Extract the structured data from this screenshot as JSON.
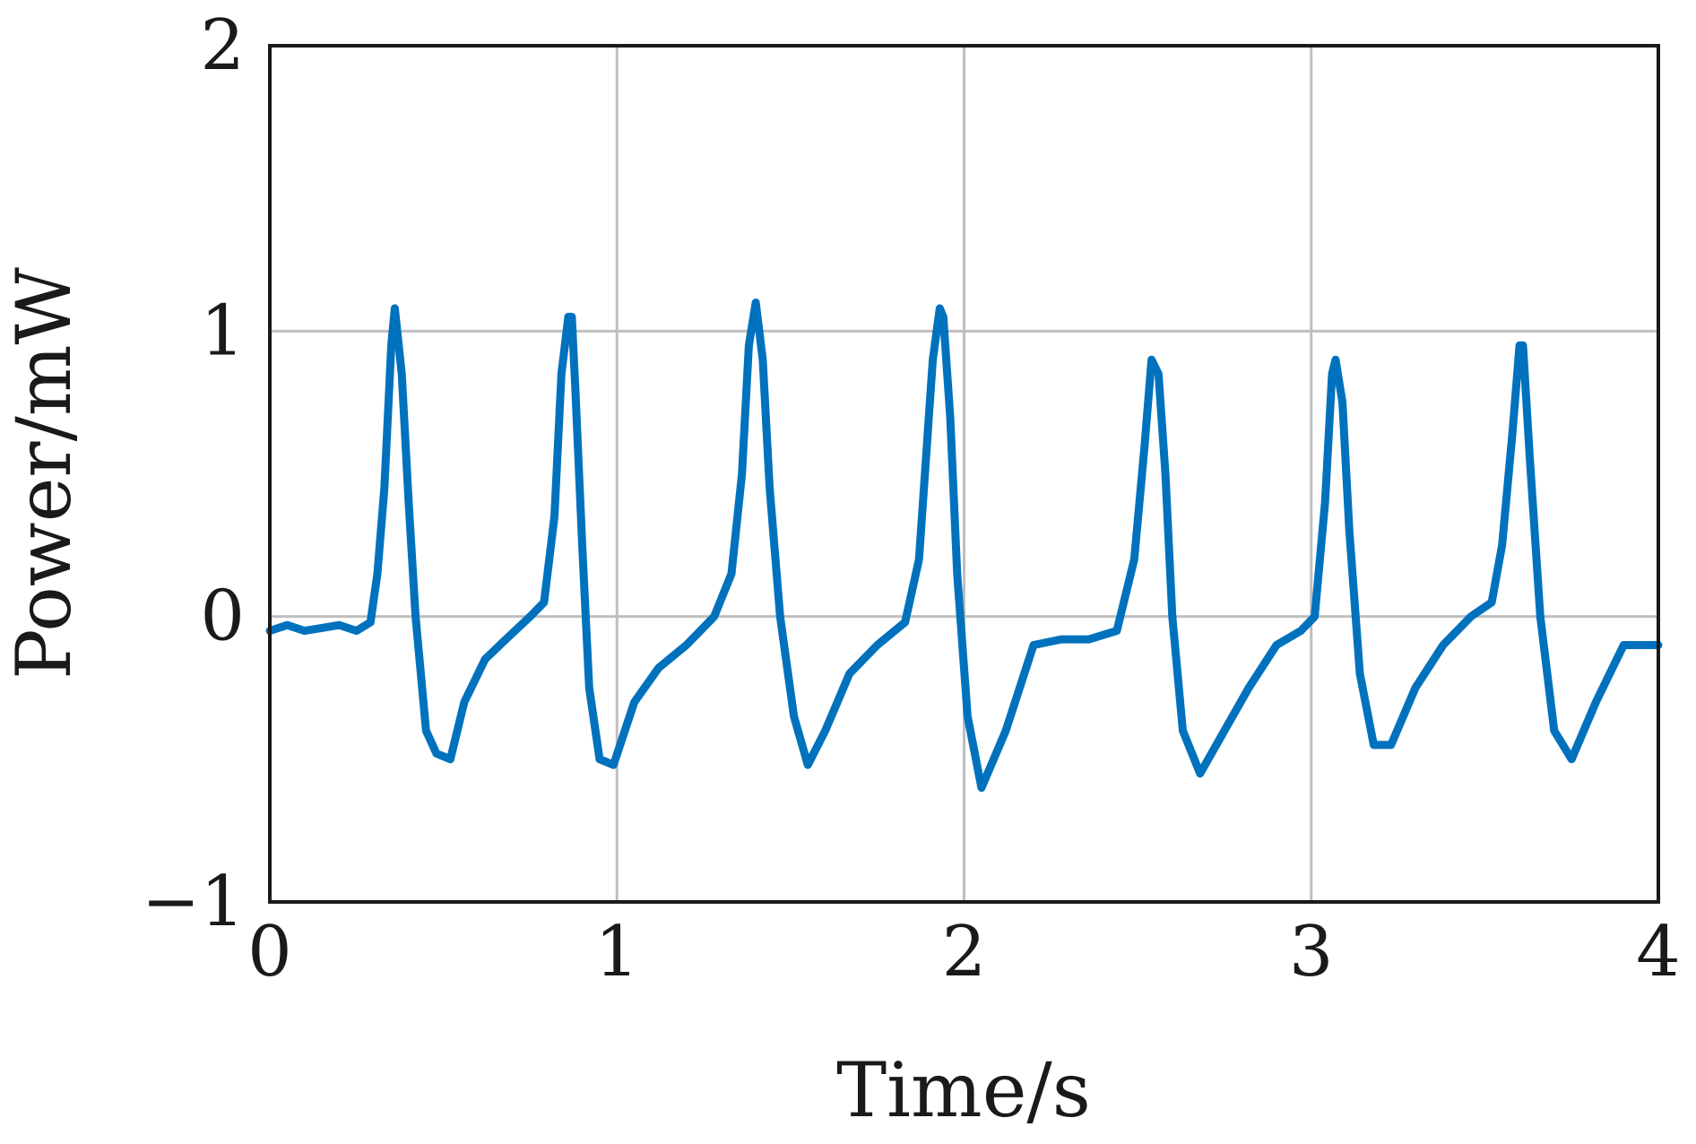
{
  "chart_data": {
    "type": "line",
    "title": "",
    "xlabel": "Time/s",
    "ylabel": "Power/mW",
    "xlim": [
      0,
      4
    ],
    "ylim": [
      -1,
      2
    ],
    "x_ticks": [
      0,
      1,
      2,
      3,
      4
    ],
    "y_ticks": [
      -1,
      0,
      1,
      2
    ],
    "x_tick_labels": [
      "0",
      "1",
      "2",
      "3",
      "4"
    ],
    "y_tick_labels": [
      "−1",
      "0",
      "1",
      "2"
    ],
    "grid": true,
    "legend": "none",
    "colors": {
      "series": "#0072BD",
      "grid": "#bfbfbf",
      "axes": "#1a1a1a"
    },
    "series": [
      {
        "x": [
          0.0,
          0.05,
          0.1,
          0.15,
          0.2,
          0.25,
          0.29,
          0.31,
          0.33,
          0.35,
          0.36,
          0.38,
          0.4,
          0.42,
          0.45,
          0.48,
          0.52,
          0.56,
          0.62,
          0.68,
          0.75,
          0.79,
          0.82,
          0.84,
          0.86,
          0.87,
          0.88,
          0.9,
          0.92,
          0.95,
          0.99,
          1.05,
          1.12,
          1.2,
          1.28,
          1.33,
          1.36,
          1.38,
          1.4,
          1.42,
          1.44,
          1.47,
          1.51,
          1.55,
          1.6,
          1.67,
          1.75,
          1.83,
          1.87,
          1.89,
          1.91,
          1.93,
          1.94,
          1.96,
          1.98,
          2.01,
          2.05,
          2.12,
          2.2,
          2.28,
          2.36,
          2.44,
          2.49,
          2.52,
          2.54,
          2.56,
          2.58,
          2.6,
          2.63,
          2.68,
          2.75,
          2.82,
          2.9,
          2.97,
          3.01,
          3.04,
          3.06,
          3.07,
          3.09,
          3.11,
          3.14,
          3.18,
          3.23,
          3.3,
          3.38,
          3.46,
          3.52,
          3.55,
          3.58,
          3.6,
          3.61,
          3.63,
          3.66,
          3.7,
          3.75,
          3.82,
          3.9,
          4.0
        ],
        "y": [
          -0.05,
          -0.03,
          -0.05,
          -0.04,
          -0.03,
          -0.05,
          -0.02,
          0.15,
          0.45,
          0.95,
          1.08,
          0.85,
          0.4,
          0.0,
          -0.4,
          -0.48,
          -0.5,
          -0.3,
          -0.15,
          -0.08,
          0.0,
          0.05,
          0.35,
          0.85,
          1.05,
          1.05,
          0.8,
          0.25,
          -0.25,
          -0.5,
          -0.52,
          -0.3,
          -0.18,
          -0.1,
          0.0,
          0.15,
          0.5,
          0.95,
          1.1,
          0.9,
          0.45,
          0.0,
          -0.35,
          -0.52,
          -0.4,
          -0.2,
          -0.1,
          -0.02,
          0.2,
          0.55,
          0.9,
          1.08,
          1.05,
          0.7,
          0.15,
          -0.35,
          -0.6,
          -0.4,
          -0.1,
          -0.08,
          -0.08,
          -0.05,
          0.2,
          0.6,
          0.9,
          0.85,
          0.5,
          0.0,
          -0.4,
          -0.55,
          -0.4,
          -0.25,
          -0.1,
          -0.05,
          0.0,
          0.4,
          0.85,
          0.9,
          0.75,
          0.3,
          -0.2,
          -0.45,
          -0.45,
          -0.25,
          -0.1,
          0.0,
          0.05,
          0.25,
          0.65,
          0.95,
          0.95,
          0.55,
          0.0,
          -0.4,
          -0.5,
          -0.3,
          -0.1,
          -0.1
        ]
      }
    ]
  }
}
